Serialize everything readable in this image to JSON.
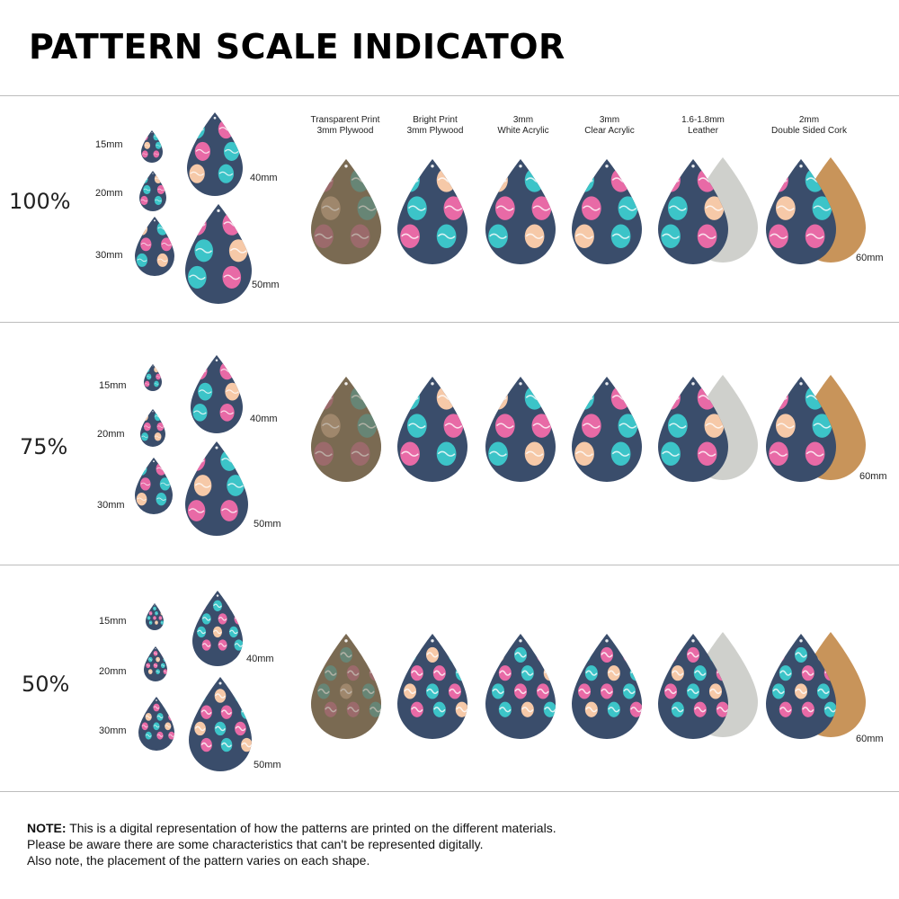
{
  "title": "PATTERN SCALE INDICATOR",
  "materials": [
    {
      "line1": "Transparent Print",
      "line2": "3mm Plywood"
    },
    {
      "line1": "Bright Print",
      "line2": "3mm Plywood"
    },
    {
      "line1": "3mm",
      "line2": "White Acrylic"
    },
    {
      "line1": "3mm",
      "line2": "Clear Acrylic"
    },
    {
      "line1": "1.6-1.8mm",
      "line2": "Leather"
    },
    {
      "line1": "2mm",
      "line2": "Double Sided Cork"
    }
  ],
  "sections": [
    {
      "scale": "100%",
      "sizes": [
        "15mm",
        "20mm",
        "30mm",
        "40mm",
        "50mm"
      ],
      "size_60": "60mm"
    },
    {
      "scale": "75%",
      "sizes": [
        "15mm",
        "20mm",
        "30mm",
        "40mm",
        "50mm"
      ],
      "size_60": "60mm"
    },
    {
      "scale": "50%",
      "sizes": [
        "15mm",
        "20mm",
        "30mm",
        "40mm",
        "50mm"
      ],
      "size_60": "60mm"
    }
  ],
  "note": {
    "bold": "NOTE:",
    "line1": " This is a digital representation of how the patterns are printed on the different materials.",
    "line2": "Please be aware there are some characteristics that can't be represented digitally.",
    "line3": "Also note, the placement of the pattern varies on each shape."
  },
  "colors": {
    "pattern_bg": "#3a4d6b",
    "egg_pink": "#e86aa6",
    "egg_teal": "#3cc4c8",
    "egg_peach": "#f6c9a8",
    "plywood": "#7a6a52",
    "leather_back": "#cfd0cc",
    "cork_back": "#c8945a"
  }
}
